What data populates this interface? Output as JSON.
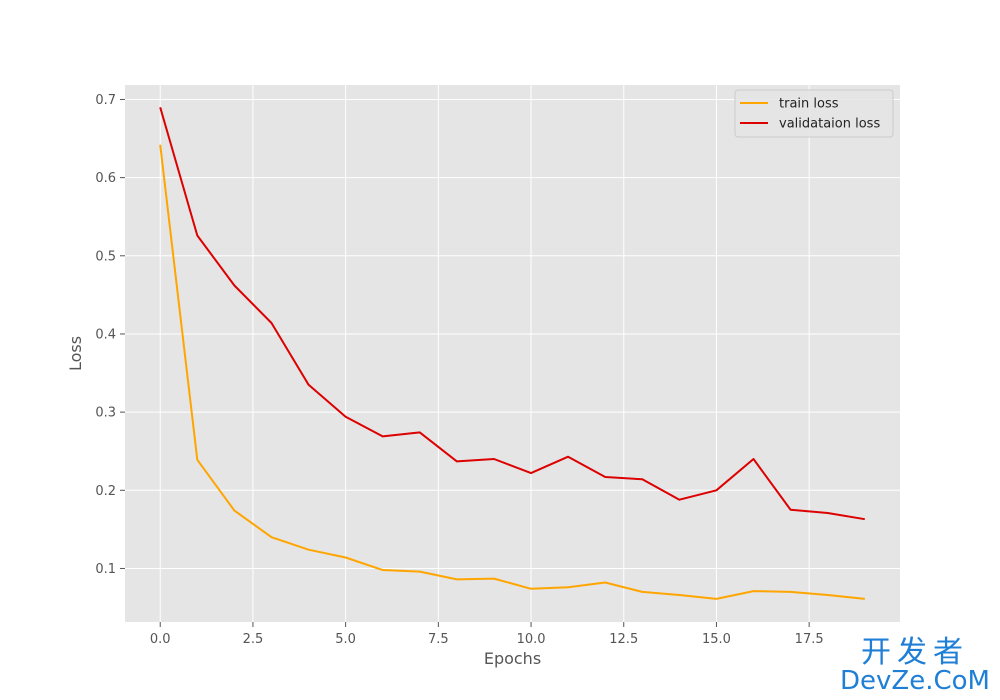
{
  "chart_data": {
    "type": "line",
    "xlabel": "Epochs",
    "ylabel": "Loss",
    "xlim": [
      -0.95,
      19.95
    ],
    "ylim": [
      0.0315,
      0.7185
    ],
    "xticks": [
      0.0,
      2.5,
      5.0,
      7.5,
      10.0,
      12.5,
      15.0,
      17.5
    ],
    "xtick_labels": [
      "0.0",
      "2.5",
      "5.0",
      "7.5",
      "10.0",
      "12.5",
      "15.0",
      "17.5"
    ],
    "yticks": [
      0.1,
      0.2,
      0.3,
      0.4,
      0.5,
      0.6,
      0.7
    ],
    "ytick_labels": [
      "0.1",
      "0.2",
      "0.3",
      "0.4",
      "0.5",
      "0.6",
      "0.7"
    ],
    "grid": true,
    "legend_position": "top-right",
    "x": [
      0,
      1,
      2,
      3,
      4,
      5,
      6,
      7,
      8,
      9,
      10,
      11,
      12,
      13,
      14,
      15,
      16,
      17,
      18,
      19
    ],
    "series": [
      {
        "name": "train loss",
        "color": "#ffa500",
        "values": [
          0.642,
          0.239,
          0.174,
          0.14,
          0.124,
          0.114,
          0.098,
          0.096,
          0.086,
          0.087,
          0.074,
          0.076,
          0.082,
          0.07,
          0.066,
          0.061,
          0.071,
          0.07,
          0.066,
          0.061
        ]
      },
      {
        "name": "validataion loss",
        "color": "#dd0000",
        "values": [
          0.69,
          0.526,
          0.462,
          0.414,
          0.335,
          0.294,
          0.269,
          0.274,
          0.237,
          0.24,
          0.222,
          0.243,
          0.217,
          0.214,
          0.188,
          0.2,
          0.24,
          0.175,
          0.171,
          0.163
        ]
      }
    ]
  },
  "style": {
    "plot_background": "#e5e5e5",
    "grid_color": "#ffffff",
    "tick_color": "#555555"
  },
  "watermark": {
    "top": "开发者",
    "bottom": "DevZe.CoM"
  }
}
